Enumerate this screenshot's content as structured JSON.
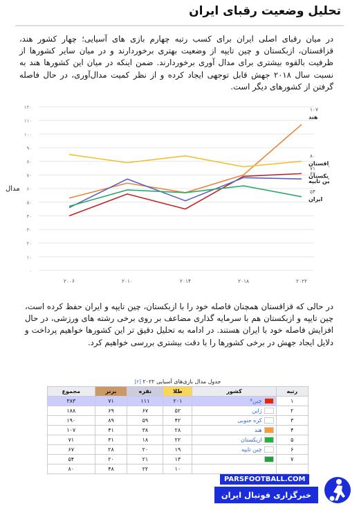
{
  "article": {
    "title": "تحلیل وضعیت رقبای ایران",
    "paragraph1": "در میان رقبای اصلی ایران برای کسب رتبه چهارم بازی های آسیایی؛ چهار کشور هند، قزاقستان، ازبکستان و چین تایپه از وضعیت بهتری برخوردارند و در میان سایر کشورها از ظرفیت بالقوه بیشتری برای مدال آوری برخوردارند. ضمن اینکه در میان این کشورها هند به نسبت سال ۲۰۱۸ جهش قابل توجهی ایجاد کرده و از نظر کمیت مدال‌آوری، در حال فاصله گرفتن از کشورهای دیگر است.",
    "paragraph2": "در حالی که قزاقستان همچنان فاصله خود را با ازبکستان، چین تایپه و ایران حفظ کرده است، چین تایپه و ازبکستان هم با سرمایه گذاری مضاعف بر روی برخی رشته های ورزشی، در حال افزایش فاصله خود با ایران هستند. در ادامه به تحلیل دقیق تر این کشورها خواهیم پرداخت و دلایل ایجاد جهش در برخی کشورها را با دقت بیشتری بررسی خواهیم کرد."
  },
  "chart_data": {
    "type": "line",
    "ylabel": "مدال",
    "ylim": [
      0,
      120
    ],
    "yticks": [
      "۰",
      "۱۰",
      "۲۰",
      "۳۰",
      "۴۰",
      "۵۰",
      "۶۰",
      "۷۰",
      "۸۰",
      "۹۰",
      "۱۰۰",
      "۱۱۰",
      "۱۲۰"
    ],
    "x": [
      "۲۰۰۶",
      "۲۰۱۰",
      "۲۰۱۴",
      "۲۰۱۸",
      "۲۰۲۲"
    ],
    "series": [
      {
        "name": "هند",
        "color": "#e8843c",
        "values": [
          53,
          64,
          57,
          70,
          107
        ],
        "end_label": "۱۰۷"
      },
      {
        "name": "قزاقستان",
        "color": "#f2c12e",
        "values": [
          85,
          79,
          84,
          76,
          80
        ],
        "end_label": "۸۰"
      },
      {
        "name": "ازبکستان",
        "color": "#c02828",
        "values": [
          40,
          56,
          45,
          69,
          71
        ],
        "end_label": "۷۱"
      },
      {
        "name": "چین تایپه",
        "color": "#5c5fc4",
        "values": [
          46,
          67,
          51,
          68,
          67
        ],
        "end_label": "۶۷"
      },
      {
        "name": "ایران",
        "color": "#2ea86a",
        "values": [
          47,
          59,
          57,
          62,
          54
        ],
        "end_label": "۵۴"
      }
    ]
  },
  "medal_table": {
    "caption": "جدول مدال بازی‌های آسیایی ۲۰۲۲",
    "ref": "[۲]",
    "headers": {
      "rank": "رتبه",
      "country": "کشور",
      "gold": "طلا",
      "silver": "نقره",
      "bronze": "برنز",
      "total": "مجموع"
    },
    "rows": [
      {
        "rank": "۱",
        "country": "چین*",
        "gold": "۲۰۱",
        "silver": "۱۱۱",
        "bronze": "۷۱",
        "total": "۳۸۳",
        "flag": "#de2910",
        "host": true
      },
      {
        "rank": "۲",
        "country": "ژاپن",
        "gold": "۵۲",
        "silver": "۶۷",
        "bronze": "۶۹",
        "total": "۱۸۸",
        "flag": "#ffffff"
      },
      {
        "rank": "۳",
        "country": "کره جنوبی",
        "gold": "۴۲",
        "silver": "۵۹",
        "bronze": "۸۹",
        "total": "۱۹۰",
        "flag": "#ffffff"
      },
      {
        "rank": "۴",
        "country": "هند",
        "gold": "۲۸",
        "silver": "۳۸",
        "bronze": "۴۱",
        "total": "۱۰۷",
        "flag": "#ff9933"
      },
      {
        "rank": "۵",
        "country": "ازبکستان",
        "gold": "۲۲",
        "silver": "۱۸",
        "bronze": "۳۱",
        "total": "۷۱",
        "flag": "#1eb53a"
      },
      {
        "rank": "۶",
        "country": "چین تایپه",
        "gold": "۱۹",
        "silver": "۲۰",
        "bronze": "۲۸",
        "total": "۶۷",
        "flag": "#ffffff"
      },
      {
        "rank": "۷",
        "country": "",
        "gold": "۱۳",
        "silver": "۲۱",
        "bronze": "۲۰",
        "total": "۵۴",
        "flag": "#239f40"
      },
      {
        "rank": "",
        "country": "",
        "gold": "۱۰",
        "silver": "۲۲",
        "bronze": "۴۸",
        "total": "۸۰",
        "flag": ""
      }
    ]
  },
  "watermark": {
    "site": "PARSFOOTBALL.COM",
    "banner": "خبرگزاری فوتبال ایران"
  }
}
